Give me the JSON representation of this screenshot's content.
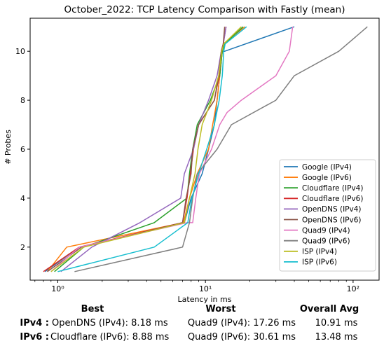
{
  "chart_data": {
    "type": "line",
    "title": "October_2022: TCP Latency Comparison with Fastly (mean)",
    "xlabel": "Latency in ms",
    "ylabel": "# Probes",
    "x_scale": "log",
    "xlim": [
      0.65,
      150
    ],
    "ylim": [
      0.65,
      11.35
    ],
    "x_ticks": [
      1,
      10,
      100
    ],
    "x_tick_labels": [
      "10⁰",
      "10¹",
      "10²"
    ],
    "y_ticks": [
      2,
      4,
      6,
      8,
      10
    ],
    "y_tick_labels": [
      "2",
      "4",
      "6",
      "8",
      "10"
    ],
    "grid": false,
    "legend_position": "lower right",
    "series": [
      {
        "name": "Google (IPv4)",
        "color": "#1f77b4",
        "x": [
          0.82,
          1.4,
          7.2,
          8.0,
          9.5,
          10.5,
          11.5,
          12.0,
          12.5,
          13.0,
          13.5,
          40.0
        ],
        "y": [
          1,
          2,
          3,
          4,
          5,
          6,
          7,
          8,
          9,
          10,
          10,
          11
        ]
      },
      {
        "name": "Google (IPv6)",
        "color": "#ff7f0e",
        "x": [
          0.85,
          1.15,
          7.1,
          7.8,
          8.8,
          10.5,
          11.2,
          12.0,
          12.5,
          13.0,
          13.2,
          18.5
        ],
        "y": [
          1,
          2,
          3,
          4,
          5,
          6,
          7,
          8,
          9,
          10,
          10.3,
          11
        ]
      },
      {
        "name": "Cloudflare (IPv4)",
        "color": "#2ca02c",
        "x": [
          0.95,
          1.5,
          4.5,
          7.5,
          7.8,
          8.2,
          8.8,
          10.8,
          12.5,
          13.0,
          13.5,
          18.0
        ],
        "y": [
          1,
          2,
          3,
          4,
          5,
          6,
          7,
          8,
          9,
          10,
          10.3,
          11
        ]
      },
      {
        "name": "Cloudflare (IPv6)",
        "color": "#d62728",
        "x": [
          0.8,
          1.4,
          7.0,
          7.5,
          7.9,
          8.3,
          9.0,
          11.5,
          12.4,
          12.8,
          13.2,
          13.8
        ],
        "y": [
          1,
          2,
          3,
          4,
          5,
          6,
          7,
          8,
          9,
          10,
          10.3,
          11
        ]
      },
      {
        "name": "OpenDNS (IPv4)",
        "color": "#9467bd",
        "x": [
          1.05,
          1.7,
          3.6,
          6.8,
          7.2,
          8.3,
          9.0,
          10.5,
          12.0,
          12.8,
          13.2,
          13.8
        ],
        "y": [
          1,
          2,
          3,
          4,
          5,
          6,
          7,
          8,
          9,
          10,
          10.3,
          11
        ]
      },
      {
        "name": "OpenDNS (IPv6)",
        "color": "#8c564b",
        "x": [
          0.85,
          1.45,
          7.0,
          7.4,
          8.0,
          8.2,
          9.0,
          11.5,
          12.3,
          12.8,
          13.2,
          13.5
        ],
        "y": [
          1,
          2,
          3,
          4,
          5,
          6,
          7,
          8,
          9,
          10,
          10.3,
          11
        ]
      },
      {
        "name": "Quad9 (IPv4)",
        "color": "#e377c2",
        "x": [
          0.9,
          1.4,
          7.5,
          8.2,
          8.6,
          9.1,
          11.0,
          12.5,
          14.0,
          17.5,
          30.0,
          37.0,
          39.0
        ],
        "y": [
          1,
          2,
          3,
          3,
          4,
          5,
          6,
          7,
          7.5,
          8,
          9,
          10,
          11
        ]
      },
      {
        "name": "Quad9 (IPv6)",
        "color": "#7f7f7f",
        "x": [
          1.3,
          7.0,
          7.8,
          8.2,
          8.8,
          12.0,
          15.0,
          30.0,
          40.0,
          80.0,
          125.0
        ],
        "y": [
          1,
          2,
          3,
          4,
          5,
          6,
          7,
          8,
          9,
          10,
          11
        ]
      },
      {
        "name": "ISP (IPv4)",
        "color": "#bcbd22",
        "x": [
          0.9,
          1.5,
          7.2,
          7.8,
          8.5,
          8.9,
          9.5,
          11.0,
          12.3,
          12.9,
          13.3,
          17.5
        ],
        "y": [
          1,
          2,
          3,
          4,
          5,
          6,
          7,
          8,
          9,
          10,
          10.3,
          11
        ]
      },
      {
        "name": "ISP (IPv6)",
        "color": "#17becf",
        "x": [
          1.0,
          4.5,
          7.6,
          8.1,
          9.0,
          10.2,
          11.5,
          12.4,
          13.0,
          13.3,
          13.6,
          19.0
        ],
        "y": [
          1,
          2,
          3,
          4,
          5,
          6,
          7,
          8,
          9,
          10,
          10.3,
          11
        ]
      }
    ]
  },
  "stats": {
    "headers": [
      "Best",
      "Worst",
      "Overall Avg"
    ],
    "rows": [
      {
        "label": "IPv4 :",
        "best": "OpenDNS (IPv4): 8.18 ms",
        "worst": "Quad9 (IPv4): 17.26 ms",
        "avg": "10.91 ms"
      },
      {
        "label": "IPv6 :",
        "best": "Cloudflare (IPv6): 8.88 ms",
        "worst": "Quad9 (IPv6): 30.61 ms",
        "avg": "13.48 ms"
      }
    ]
  }
}
